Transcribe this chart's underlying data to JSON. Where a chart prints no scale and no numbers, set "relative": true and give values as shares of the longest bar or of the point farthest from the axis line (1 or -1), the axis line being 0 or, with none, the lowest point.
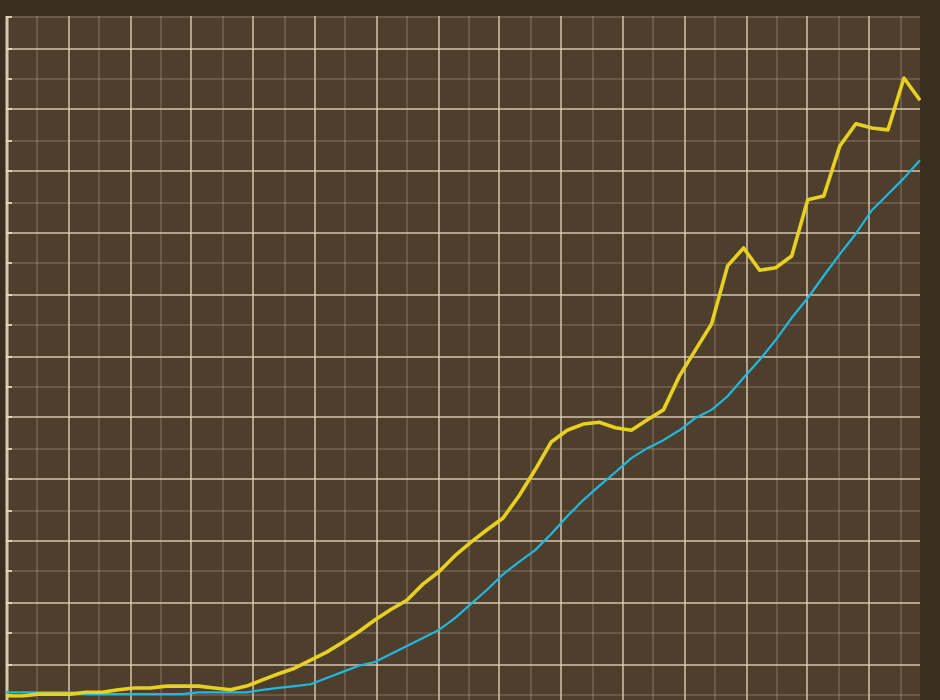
{
  "chart_data": {
    "type": "line",
    "relative": true,
    "grid": true,
    "marker": "none",
    "line_style": "solid",
    "categories": [
      null,
      null,
      null,
      null,
      null,
      null,
      null,
      null,
      null,
      null,
      null,
      null,
      null,
      null,
      null,
      null,
      null,
      null,
      null,
      null,
      null,
      null,
      null,
      null,
      null,
      null,
      null,
      null,
      null,
      null,
      null,
      null,
      null,
      null,
      null,
      null,
      null,
      null,
      null,
      null,
      null,
      null,
      null,
      null,
      null,
      null,
      null,
      null,
      null,
      null,
      null,
      null,
      null,
      null,
      null,
      null,
      null,
      null
    ],
    "series": [
      {
        "color": "#e8d020",
        "values": [
          0,
          0,
          0.003,
          0.003,
          0.003,
          0.006,
          0.006,
          0.01,
          0.013,
          0.013,
          0.016,
          0.016,
          0.016,
          0.013,
          0.01,
          0.016,
          0.026,
          0.036,
          0.045,
          0.058,
          0.071,
          0.087,
          0.104,
          0.123,
          0.14,
          0.155,
          0.181,
          0.201,
          0.227,
          0.249,
          0.269,
          0.288,
          0.324,
          0.366,
          0.411,
          0.43,
          0.44,
          0.443,
          0.434,
          0.43,
          0.447,
          0.463,
          0.518,
          0.56,
          0.602,
          0.696,
          0.725,
          0.689,
          0.693,
          0.712,
          0.803,
          0.809,
          0.89,
          0.926,
          0.919,
          0.916,
          1,
          0.964
        ]
      },
      {
        "color": "#20b8e0",
        "values": [
          0.006,
          0.006,
          0.006,
          0.006,
          0.006,
          0.003,
          0.003,
          0.003,
          0.003,
          0.003,
          0.003,
          0.003,
          0.006,
          0.006,
          0.006,
          0.006,
          0.01,
          0.013,
          0.016,
          0.019,
          0.029,
          0.039,
          0.049,
          0.055,
          0.068,
          0.081,
          0.094,
          0.107,
          0.126,
          0.149,
          0.172,
          0.197,
          0.217,
          0.236,
          0.262,
          0.291,
          0.317,
          0.34,
          0.362,
          0.385,
          0.401,
          0.414,
          0.43,
          0.45,
          0.463,
          0.485,
          0.515,
          0.544,
          0.576,
          0.612,
          0.644,
          0.68,
          0.715,
          0.748,
          0.786,
          0.812,
          0.838,
          0.867
        ]
      }
    ]
  }
}
